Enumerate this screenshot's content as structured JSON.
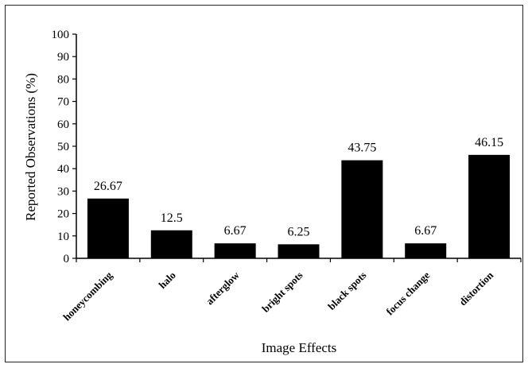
{
  "chart_data": {
    "type": "bar",
    "categories": [
      "honeycombing",
      "halo",
      "afterglow",
      "bright spots",
      "black spots",
      "focus change",
      "distortion"
    ],
    "values": [
      26.67,
      12.5,
      6.67,
      6.25,
      43.75,
      6.67,
      46.15
    ],
    "data_labels": [
      "26.67",
      "12.5",
      "6.67",
      "6.25",
      "43.75",
      "6.67",
      "46.15"
    ],
    "xlabel": "Image Effects",
    "ylabel": "Reported Observations (%)",
    "ylim": [
      0,
      100
    ],
    "yticks": [
      0,
      10,
      20,
      30,
      40,
      50,
      60,
      70,
      80,
      90,
      100
    ],
    "grid": false,
    "legend": "none",
    "bar_color": "#000000"
  }
}
